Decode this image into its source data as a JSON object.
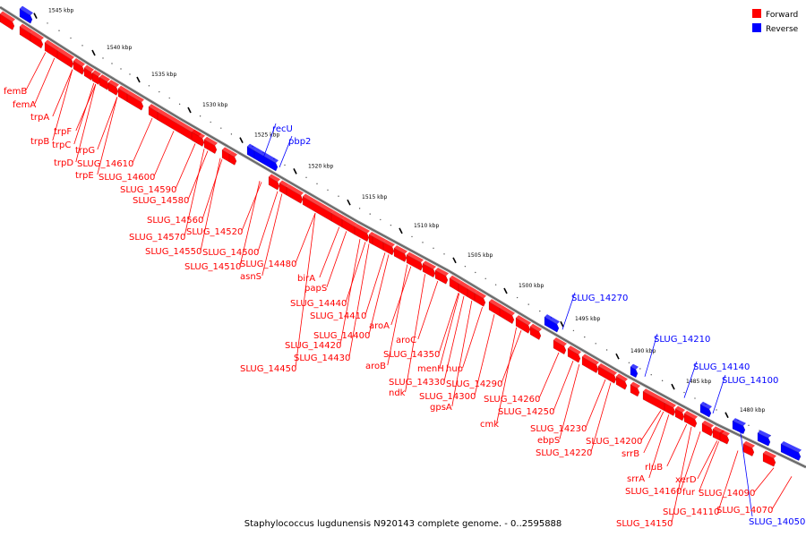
{
  "caption": "Staphylococcus lugdunensis N920143 complete genome. - 0..2595888",
  "legend": [
    {
      "label": "Forward",
      "color": "#ff0000"
    },
    {
      "label": "Reverse",
      "color": "#0000ff"
    }
  ],
  "colors": {
    "forward": "#ff0000",
    "reverse": "#0000ff",
    "axis": "#888888"
  },
  "ticks": [
    {
      "label": "1545 kbp"
    },
    {
      "label": "1540 kbp"
    },
    {
      "label": "1535 kbp"
    },
    {
      "label": "1530 kbp"
    },
    {
      "label": "1525 kbp"
    },
    {
      "label": "1520 kbp"
    },
    {
      "label": "1515 kbp"
    },
    {
      "label": "1510 kbp"
    },
    {
      "label": "1505 kbp"
    },
    {
      "label": "1500 kbp"
    },
    {
      "label": "1495 kbp"
    },
    {
      "label": "1490 kbp"
    },
    {
      "label": "1485 kbp"
    },
    {
      "label": "1480 kbp"
    }
  ],
  "genes": [
    {
      "name": "femB",
      "strand": "forward"
    },
    {
      "name": "femA",
      "strand": "forward"
    },
    {
      "name": "trpA",
      "strand": "forward"
    },
    {
      "name": "trpF",
      "strand": "forward"
    },
    {
      "name": "trpB",
      "strand": "forward"
    },
    {
      "name": "trpC",
      "strand": "forward"
    },
    {
      "name": "trpG",
      "strand": "forward"
    },
    {
      "name": "trpD",
      "strand": "forward"
    },
    {
      "name": "trpE",
      "strand": "forward"
    },
    {
      "name": "SLUG_14610",
      "strand": "forward"
    },
    {
      "name": "SLUG_14600",
      "strand": "forward"
    },
    {
      "name": "SLUG_14590",
      "strand": "forward"
    },
    {
      "name": "SLUG_14580",
      "strand": "forward"
    },
    {
      "name": "SLUG_14560",
      "strand": "forward"
    },
    {
      "name": "SLUG_14520",
      "strand": "forward"
    },
    {
      "name": "SLUG_14570",
      "strand": "forward"
    },
    {
      "name": "SLUG_14550",
      "strand": "forward"
    },
    {
      "name": "SLUG_14500",
      "strand": "forward"
    },
    {
      "name": "SLUG_14480",
      "strand": "forward"
    },
    {
      "name": "SLUG_14510",
      "strand": "forward"
    },
    {
      "name": "asnS",
      "strand": "forward"
    },
    {
      "name": "birA",
      "strand": "forward"
    },
    {
      "name": "papS",
      "strand": "forward"
    },
    {
      "name": "SLUG_14440",
      "strand": "forward"
    },
    {
      "name": "SLUG_14410",
      "strand": "forward"
    },
    {
      "name": "SLUG_14400",
      "strand": "forward"
    },
    {
      "name": "SLUG_14420",
      "strand": "forward"
    },
    {
      "name": "SLUG_14430",
      "strand": "forward"
    },
    {
      "name": "SLUG_14450",
      "strand": "forward"
    },
    {
      "name": "aroA",
      "strand": "forward"
    },
    {
      "name": "aroC",
      "strand": "forward"
    },
    {
      "name": "SLUG_14350",
      "strand": "forward"
    },
    {
      "name": "aroB",
      "strand": "forward"
    },
    {
      "name": "SLUG_14330",
      "strand": "forward"
    },
    {
      "name": "ndk",
      "strand": "forward"
    },
    {
      "name": "menH",
      "strand": "forward"
    },
    {
      "name": "hup",
      "strand": "forward"
    },
    {
      "name": "SLUG_14290",
      "strand": "forward"
    },
    {
      "name": "SLUG_14300",
      "strand": "forward"
    },
    {
      "name": "gpsA",
      "strand": "forward"
    },
    {
      "name": "SLUG_14260",
      "strand": "forward"
    },
    {
      "name": "SLUG_14250",
      "strand": "forward"
    },
    {
      "name": "cmk",
      "strand": "forward"
    },
    {
      "name": "SLUG_14230",
      "strand": "forward"
    },
    {
      "name": "ebpS",
      "strand": "forward"
    },
    {
      "name": "SLUG_14220",
      "strand": "forward"
    },
    {
      "name": "SLUG_14200",
      "strand": "forward"
    },
    {
      "name": "srrB",
      "strand": "forward"
    },
    {
      "name": "rluB",
      "strand": "forward"
    },
    {
      "name": "srrA",
      "strand": "forward"
    },
    {
      "name": "SLUG_14160",
      "strand": "forward"
    },
    {
      "name": "xerD",
      "strand": "forward"
    },
    {
      "name": "fur",
      "strand": "forward"
    },
    {
      "name": "SLUG_14090",
      "strand": "forward"
    },
    {
      "name": "SLUG_14110",
      "strand": "forward"
    },
    {
      "name": "SLUG_14070",
      "strand": "forward"
    },
    {
      "name": "SLUG_14150",
      "strand": "forward"
    },
    {
      "name": "recU",
      "strand": "reverse"
    },
    {
      "name": "pbp2",
      "strand": "reverse"
    },
    {
      "name": "SLUG_14270",
      "strand": "reverse"
    },
    {
      "name": "SLUG_14210",
      "strand": "reverse"
    },
    {
      "name": "SLUG_14140",
      "strand": "reverse"
    },
    {
      "name": "SLUG_14100",
      "strand": "reverse"
    },
    {
      "name": "SLUG_14050",
      "strand": "reverse"
    }
  ]
}
